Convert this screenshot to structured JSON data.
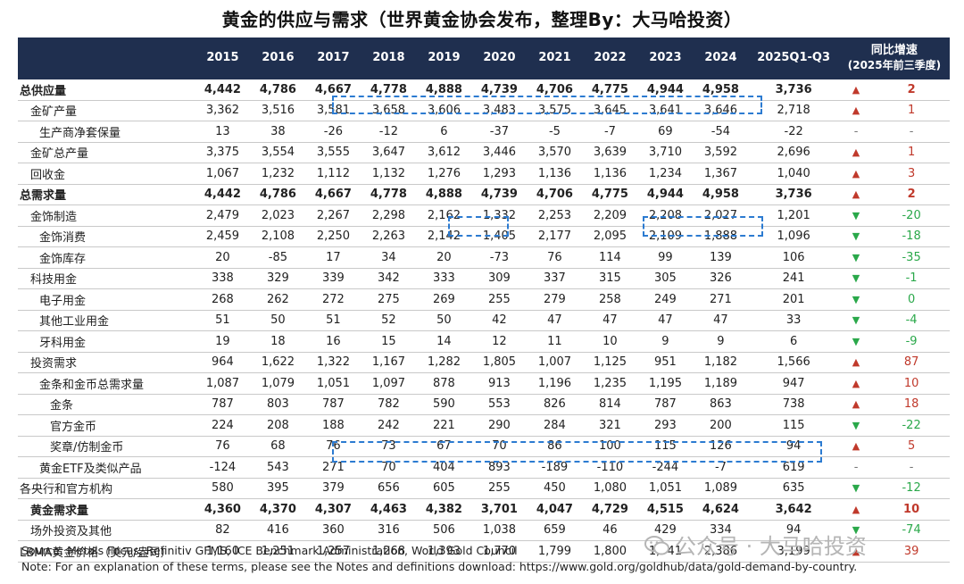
{
  "title": "黄金的供应与需求（世界黄金协会发布，整理By：大马哈投资）",
  "header": {
    "years": [
      "2015",
      "2016",
      "2017",
      "2018",
      "2019",
      "2020",
      "2021",
      "2022",
      "2023",
      "2024",
      "2025Q1-Q3"
    ],
    "yoy_line1": "同比增速",
    "yoy_line2": "(2025年前三季度)"
  },
  "rows": [
    {
      "label": "总供应量",
      "bold": true,
      "indent": 0,
      "values": [
        "4,442",
        "4,786",
        "4,667",
        "4,778",
        "4,888",
        "4,739",
        "4,706",
        "4,775",
        "4,944",
        "4,958",
        "3,736"
      ],
      "arrow": "▲",
      "dir": "up",
      "yoy": "2"
    },
    {
      "label": "金矿产量",
      "bold": false,
      "indent": 1,
      "values": [
        "3,362",
        "3,516",
        "3,581",
        "3,658",
        "3,606",
        "3,483",
        "3,575",
        "3,645",
        "3,641",
        "3,646",
        "2,718"
      ],
      "arrow": "▲",
      "dir": "up",
      "yoy": "1"
    },
    {
      "label": "生产商净套保量",
      "bold": false,
      "indent": 2,
      "values": [
        "13",
        "38",
        "-26",
        "-12",
        "6",
        "-37",
        "-5",
        "-7",
        "69",
        "-54",
        "-22"
      ],
      "arrow": "-",
      "dir": "flat",
      "yoy": "-"
    },
    {
      "label": "金矿总产量",
      "bold": false,
      "indent": 1,
      "values": [
        "3,375",
        "3,554",
        "3,555",
        "3,647",
        "3,612",
        "3,446",
        "3,570",
        "3,639",
        "3,710",
        "3,592",
        "2,696"
      ],
      "arrow": "▲",
      "dir": "up",
      "yoy": "1"
    },
    {
      "label": "回收金",
      "bold": false,
      "indent": 1,
      "values": [
        "1,067",
        "1,232",
        "1,112",
        "1,132",
        "1,276",
        "1,293",
        "1,136",
        "1,136",
        "1,234",
        "1,367",
        "1,040"
      ],
      "arrow": "▲",
      "dir": "up",
      "yoy": "3"
    },
    {
      "label": "总需求量",
      "bold": true,
      "indent": 0,
      "values": [
        "4,442",
        "4,786",
        "4,667",
        "4,778",
        "4,888",
        "4,739",
        "4,706",
        "4,775",
        "4,944",
        "4,958",
        "3,736"
      ],
      "arrow": "▲",
      "dir": "up",
      "yoy": "2"
    },
    {
      "label": "金饰制造",
      "bold": false,
      "indent": 1,
      "values": [
        "2,479",
        "2,023",
        "2,267",
        "2,298",
        "2,162",
        "1,332",
        "2,253",
        "2,209",
        "2,208",
        "2,027",
        "1,201"
      ],
      "arrow": "▼",
      "dir": "down",
      "yoy": "-20"
    },
    {
      "label": "金饰消费",
      "bold": false,
      "indent": 2,
      "values": [
        "2,459",
        "2,108",
        "2,250",
        "2,263",
        "2,142",
        "1,405",
        "2,177",
        "2,095",
        "2,109",
        "1,888",
        "1,096"
      ],
      "arrow": "▼",
      "dir": "down",
      "yoy": "-18"
    },
    {
      "label": "金饰库存",
      "bold": false,
      "indent": 2,
      "values": [
        "20",
        "-85",
        "17",
        "34",
        "20",
        "-73",
        "76",
        "114",
        "99",
        "139",
        "106"
      ],
      "arrow": "▼",
      "dir": "down",
      "yoy": "-35"
    },
    {
      "label": "科技用金",
      "bold": false,
      "indent": 1,
      "values": [
        "338",
        "329",
        "339",
        "342",
        "333",
        "309",
        "337",
        "315",
        "305",
        "326",
        "241"
      ],
      "arrow": "▼",
      "dir": "down",
      "yoy": "-1"
    },
    {
      "label": "电子用金",
      "bold": false,
      "indent": 2,
      "values": [
        "268",
        "262",
        "272",
        "275",
        "269",
        "255",
        "279",
        "258",
        "249",
        "271",
        "201"
      ],
      "arrow": "▼",
      "dir": "down",
      "yoy": "0"
    },
    {
      "label": "其他工业用金",
      "bold": false,
      "indent": 2,
      "values": [
        "51",
        "50",
        "51",
        "52",
        "50",
        "42",
        "47",
        "47",
        "47",
        "47",
        "33"
      ],
      "arrow": "▼",
      "dir": "down",
      "yoy": "-4"
    },
    {
      "label": "牙科用金",
      "bold": false,
      "indent": 2,
      "values": [
        "19",
        "18",
        "16",
        "15",
        "14",
        "12",
        "11",
        "10",
        "9",
        "9",
        "6"
      ],
      "arrow": "▼",
      "dir": "down",
      "yoy": "-9"
    },
    {
      "label": "投资需求",
      "bold": false,
      "indent": 1,
      "values": [
        "964",
        "1,622",
        "1,322",
        "1,167",
        "1,282",
        "1,805",
        "1,007",
        "1,125",
        "951",
        "1,182",
        "1,566"
      ],
      "arrow": "▲",
      "dir": "up",
      "yoy": "87"
    },
    {
      "label": "金条和金币总需求量",
      "bold": false,
      "indent": 2,
      "values": [
        "1,087",
        "1,079",
        "1,051",
        "1,097",
        "878",
        "913",
        "1,196",
        "1,235",
        "1,195",
        "1,189",
        "947"
      ],
      "arrow": "▲",
      "dir": "up",
      "yoy": "10"
    },
    {
      "label": "金条",
      "bold": false,
      "indent": 3,
      "values": [
        "787",
        "803",
        "787",
        "782",
        "590",
        "553",
        "826",
        "814",
        "787",
        "863",
        "738"
      ],
      "arrow": "▲",
      "dir": "up",
      "yoy": "18"
    },
    {
      "label": "官方金币",
      "bold": false,
      "indent": 3,
      "values": [
        "224",
        "208",
        "188",
        "242",
        "221",
        "290",
        "284",
        "321",
        "293",
        "200",
        "115"
      ],
      "arrow": "▼",
      "dir": "down",
      "yoy": "-22"
    },
    {
      "label": "奖章/仿制金币",
      "bold": false,
      "indent": 3,
      "values": [
        "76",
        "68",
        "76",
        "73",
        "67",
        "70",
        "86",
        "100",
        "115",
        "126",
        "94"
      ],
      "arrow": "▲",
      "dir": "up",
      "yoy": "5"
    },
    {
      "label": "黄金ETF及类似产品",
      "bold": false,
      "indent": 2,
      "values": [
        "-124",
        "543",
        "271",
        "70",
        "404",
        "893",
        "-189",
        "-110",
        "-244",
        "-7",
        "619"
      ],
      "arrow": "-",
      "dir": "flat",
      "yoy": "-"
    },
    {
      "label": "各央行和官方机构",
      "bold": false,
      "indent": 0,
      "values": [
        "580",
        "395",
        "379",
        "656",
        "605",
        "255",
        "450",
        "1,080",
        "1,051",
        "1,089",
        "635"
      ],
      "arrow": "▼",
      "dir": "down",
      "yoy": "-12"
    },
    {
      "label": "黄金需求量",
      "bold": true,
      "indent": 1,
      "values": [
        "4,360",
        "4,370",
        "4,307",
        "4,463",
        "4,382",
        "3,701",
        "4,047",
        "4,729",
        "4,515",
        "4,624",
        "3,642"
      ],
      "arrow": "▲",
      "dir": "up",
      "yoy": "10"
    },
    {
      "label": "场外投资及其他",
      "bold": false,
      "indent": 1,
      "values": [
        "82",
        "416",
        "360",
        "316",
        "506",
        "1,038",
        "659",
        "46",
        "429",
        "334",
        "94"
      ],
      "arrow": "▼",
      "dir": "down",
      "yoy": "-74"
    },
    {
      "label": "LBMA黄金价格（美元/盎司）",
      "bold": false,
      "indent": 0,
      "values": [
        "1,160",
        "1,251",
        "1,257",
        "1,268",
        "1,393",
        "1,770",
        "1,799",
        "1,800",
        "1,941",
        "2,386",
        "3,199"
      ],
      "arrow": "▲",
      "dir": "up",
      "yoy": "39"
    }
  ],
  "footer": {
    "source": "Source: Metals Focus, Refinitiv GFMS, ICE Benchmark Administration, World Gold Council",
    "note": "Note: For an explanation of these terms, please see the Notes and definitions download: https://www.gold.org/goldhub/data/gold-demand-by-country."
  },
  "watermark": "公众号 · 大马哈投资",
  "colors": {
    "header_bg": "#1f2f4f",
    "up": "#c0392b",
    "down": "#2aa84a",
    "highlight_box": "#2c7bd1"
  }
}
